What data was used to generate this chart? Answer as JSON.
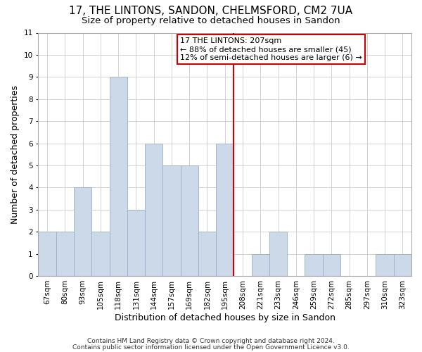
{
  "title": "17, THE LINTONS, SANDON, CHELMSFORD, CM2 7UA",
  "subtitle": "Size of property relative to detached houses in Sandon",
  "xlabel": "Distribution of detached houses by size in Sandon",
  "ylabel": "Number of detached properties",
  "categories": [
    "67sqm",
    "80sqm",
    "93sqm",
    "105sqm",
    "118sqm",
    "131sqm",
    "144sqm",
    "157sqm",
    "169sqm",
    "182sqm",
    "195sqm",
    "208sqm",
    "221sqm",
    "233sqm",
    "246sqm",
    "259sqm",
    "272sqm",
    "285sqm",
    "297sqm",
    "310sqm",
    "323sqm"
  ],
  "values": [
    2,
    2,
    4,
    2,
    9,
    3,
    6,
    5,
    5,
    2,
    6,
    0,
    1,
    2,
    0,
    1,
    1,
    0,
    0,
    1,
    1
  ],
  "bar_color": "#ccd9e8",
  "bar_edgecolor": "#9ab0c8",
  "vline_x_index": 11,
  "vline_color": "#cc0000",
  "ylim": [
    0,
    11
  ],
  "yticks": [
    0,
    1,
    2,
    3,
    4,
    5,
    6,
    7,
    8,
    9,
    10,
    11
  ],
  "annotation_title": "17 THE LINTONS: 207sqm",
  "annotation_line1": "← 88% of detached houses are smaller (45)",
  "annotation_line2": "12% of semi-detached houses are larger (6) →",
  "annotation_box_color": "#ffffff",
  "annotation_box_edgecolor": "#cc0000",
  "footer_line1": "Contains HM Land Registry data © Crown copyright and database right 2024.",
  "footer_line2": "Contains public sector information licensed under the Open Government Licence v3.0.",
  "bg_color": "#ffffff",
  "grid_color": "#cccccc",
  "title_fontsize": 11,
  "subtitle_fontsize": 9.5,
  "axis_label_fontsize": 9,
  "tick_fontsize": 7.5,
  "footer_fontsize": 6.5,
  "annotation_fontsize": 8
}
